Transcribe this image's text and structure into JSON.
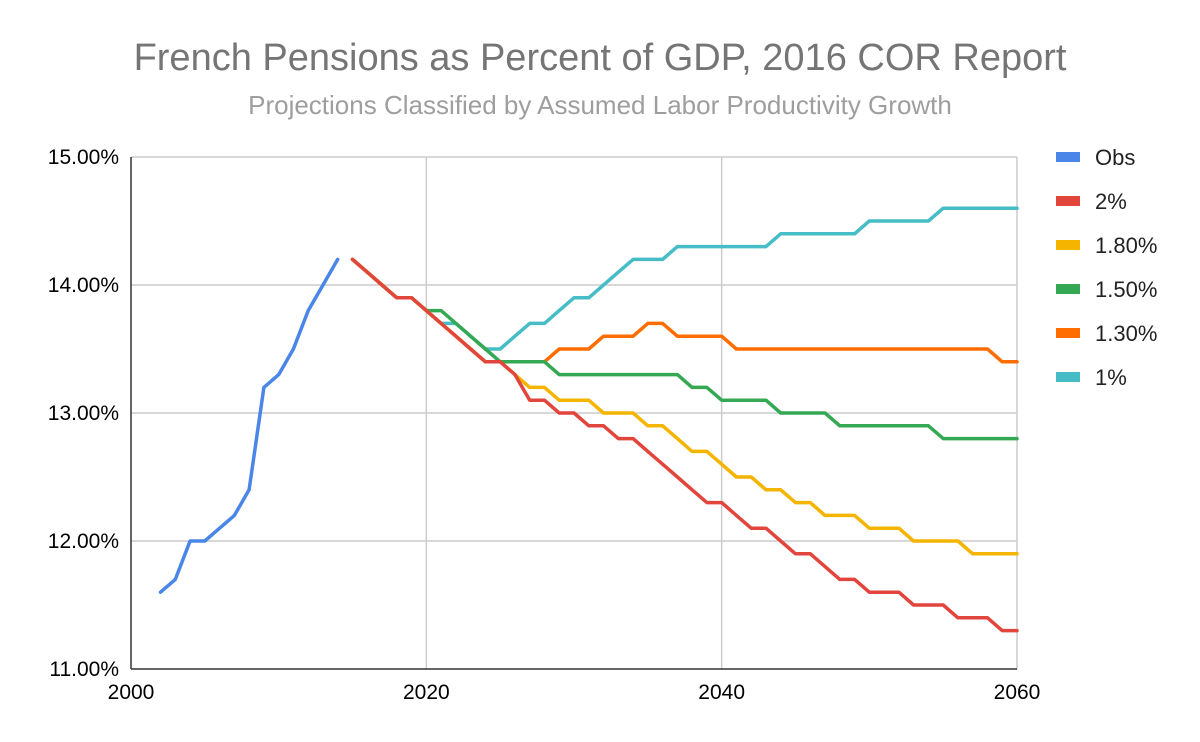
{
  "chart_data": {
    "type": "line",
    "title": "French Pensions as Percent of GDP, 2016 COR Report",
    "subtitle": "Projections Classified by Assumed Labor Productivity Growth",
    "xlabel": "",
    "ylabel": "",
    "xlim": [
      2000,
      2060
    ],
    "ylim": [
      0.11,
      0.15
    ],
    "x_ticks": [
      "2000",
      "2020",
      "2040",
      "2060"
    ],
    "y_ticks": [
      "15.00%",
      "14.00%",
      "13.00%",
      "12.00%",
      "11.00%"
    ],
    "grid": true,
    "legend_position": "right",
    "series": [
      {
        "name": "Obs",
        "color": "#4a86e8",
        "x": [
          2002,
          2003,
          2004,
          2005,
          2006,
          2007,
          2008,
          2009,
          2010,
          2011,
          2012,
          2013,
          2014
        ],
        "y": [
          0.116,
          0.117,
          0.12,
          0.12,
          0.121,
          0.122,
          0.124,
          0.132,
          0.133,
          0.135,
          0.138,
          0.14,
          0.142
        ]
      },
      {
        "name": "2%",
        "color": "#e2453c",
        "x": [
          2015,
          2016,
          2017,
          2018,
          2019,
          2020,
          2021,
          2022,
          2023,
          2024,
          2025,
          2026,
          2027,
          2028,
          2029,
          2030,
          2031,
          2032,
          2033,
          2034,
          2035,
          2036,
          2037,
          2038,
          2039,
          2040,
          2041,
          2042,
          2043,
          2044,
          2045,
          2046,
          2047,
          2048,
          2049,
          2050,
          2051,
          2052,
          2053,
          2054,
          2055,
          2056,
          2057,
          2058,
          2059,
          2060
        ],
        "y": [
          0.142,
          0.141,
          0.14,
          0.139,
          0.139,
          0.138,
          0.137,
          0.136,
          0.135,
          0.134,
          0.134,
          0.133,
          0.131,
          0.131,
          0.13,
          0.13,
          0.129,
          0.129,
          0.128,
          0.128,
          0.127,
          0.126,
          0.125,
          0.124,
          0.123,
          0.123,
          0.122,
          0.121,
          0.121,
          0.12,
          0.119,
          0.119,
          0.118,
          0.117,
          0.117,
          0.116,
          0.116,
          0.116,
          0.115,
          0.115,
          0.115,
          0.114,
          0.114,
          0.114,
          0.113,
          0.113
        ]
      },
      {
        "name": "1.80%",
        "color": "#f4b400",
        "x": [
          2015,
          2016,
          2017,
          2018,
          2019,
          2020,
          2021,
          2022,
          2023,
          2024,
          2025,
          2026,
          2027,
          2028,
          2029,
          2030,
          2031,
          2032,
          2033,
          2034,
          2035,
          2036,
          2037,
          2038,
          2039,
          2040,
          2041,
          2042,
          2043,
          2044,
          2045,
          2046,
          2047,
          2048,
          2049,
          2050,
          2051,
          2052,
          2053,
          2054,
          2055,
          2056,
          2057,
          2058,
          2059,
          2060
        ],
        "y": [
          0.142,
          0.141,
          0.14,
          0.139,
          0.139,
          0.138,
          0.137,
          0.136,
          0.135,
          0.134,
          0.134,
          0.133,
          0.132,
          0.132,
          0.131,
          0.131,
          0.131,
          0.13,
          0.13,
          0.13,
          0.129,
          0.129,
          0.128,
          0.127,
          0.127,
          0.126,
          0.125,
          0.125,
          0.124,
          0.124,
          0.123,
          0.123,
          0.122,
          0.122,
          0.122,
          0.121,
          0.121,
          0.121,
          0.12,
          0.12,
          0.12,
          0.12,
          0.119,
          0.119,
          0.119,
          0.119
        ]
      },
      {
        "name": "1.50%",
        "color": "#34a853",
        "x": [
          2015,
          2016,
          2017,
          2018,
          2019,
          2020,
          2021,
          2022,
          2023,
          2024,
          2025,
          2026,
          2027,
          2028,
          2029,
          2030,
          2031,
          2032,
          2033,
          2034,
          2035,
          2036,
          2037,
          2038,
          2039,
          2040,
          2041,
          2042,
          2043,
          2044,
          2045,
          2046,
          2047,
          2048,
          2049,
          2050,
          2051,
          2052,
          2053,
          2054,
          2055,
          2056,
          2057,
          2058,
          2059,
          2060
        ],
        "y": [
          0.142,
          0.141,
          0.14,
          0.139,
          0.139,
          0.138,
          0.138,
          0.137,
          0.136,
          0.135,
          0.134,
          0.134,
          0.134,
          0.134,
          0.133,
          0.133,
          0.133,
          0.133,
          0.133,
          0.133,
          0.133,
          0.133,
          0.133,
          0.132,
          0.132,
          0.131,
          0.131,
          0.131,
          0.131,
          0.13,
          0.13,
          0.13,
          0.13,
          0.129,
          0.129,
          0.129,
          0.129,
          0.129,
          0.129,
          0.129,
          0.128,
          0.128,
          0.128,
          0.128,
          0.128,
          0.128
        ]
      },
      {
        "name": "1.30%",
        "color": "#ff6d00",
        "x": [
          2015,
          2016,
          2017,
          2018,
          2019,
          2020,
          2021,
          2022,
          2023,
          2024,
          2025,
          2026,
          2027,
          2028,
          2029,
          2030,
          2031,
          2032,
          2033,
          2034,
          2035,
          2036,
          2037,
          2038,
          2039,
          2040,
          2041,
          2042,
          2043,
          2044,
          2045,
          2046,
          2047,
          2048,
          2049,
          2050,
          2051,
          2052,
          2053,
          2054,
          2055,
          2056,
          2057,
          2058,
          2059,
          2060
        ],
        "y": [
          0.142,
          0.141,
          0.14,
          0.139,
          0.139,
          0.138,
          0.137,
          0.136,
          0.135,
          0.134,
          0.134,
          0.134,
          0.134,
          0.134,
          0.135,
          0.135,
          0.135,
          0.136,
          0.136,
          0.136,
          0.137,
          0.137,
          0.136,
          0.136,
          0.136,
          0.136,
          0.135,
          0.135,
          0.135,
          0.135,
          0.135,
          0.135,
          0.135,
          0.135,
          0.135,
          0.135,
          0.135,
          0.135,
          0.135,
          0.135,
          0.135,
          0.135,
          0.135,
          0.135,
          0.134,
          0.134
        ]
      },
      {
        "name": "1%",
        "color": "#46bdc6",
        "x": [
          2015,
          2016,
          2017,
          2018,
          2019,
          2020,
          2021,
          2022,
          2023,
          2024,
          2025,
          2026,
          2027,
          2028,
          2029,
          2030,
          2031,
          2032,
          2033,
          2034,
          2035,
          2036,
          2037,
          2038,
          2039,
          2040,
          2041,
          2042,
          2043,
          2044,
          2045,
          2046,
          2047,
          2048,
          2049,
          2050,
          2051,
          2052,
          2053,
          2054,
          2055,
          2056,
          2057,
          2058,
          2059,
          2060
        ],
        "y": [
          0.142,
          0.141,
          0.14,
          0.139,
          0.139,
          0.138,
          0.137,
          0.137,
          0.136,
          0.135,
          0.135,
          0.136,
          0.137,
          0.137,
          0.138,
          0.139,
          0.139,
          0.14,
          0.141,
          0.142,
          0.142,
          0.142,
          0.143,
          0.143,
          0.143,
          0.143,
          0.143,
          0.143,
          0.143,
          0.144,
          0.144,
          0.144,
          0.144,
          0.144,
          0.144,
          0.145,
          0.145,
          0.145,
          0.145,
          0.145,
          0.146,
          0.146,
          0.146,
          0.146,
          0.146,
          0.146
        ]
      }
    ]
  }
}
